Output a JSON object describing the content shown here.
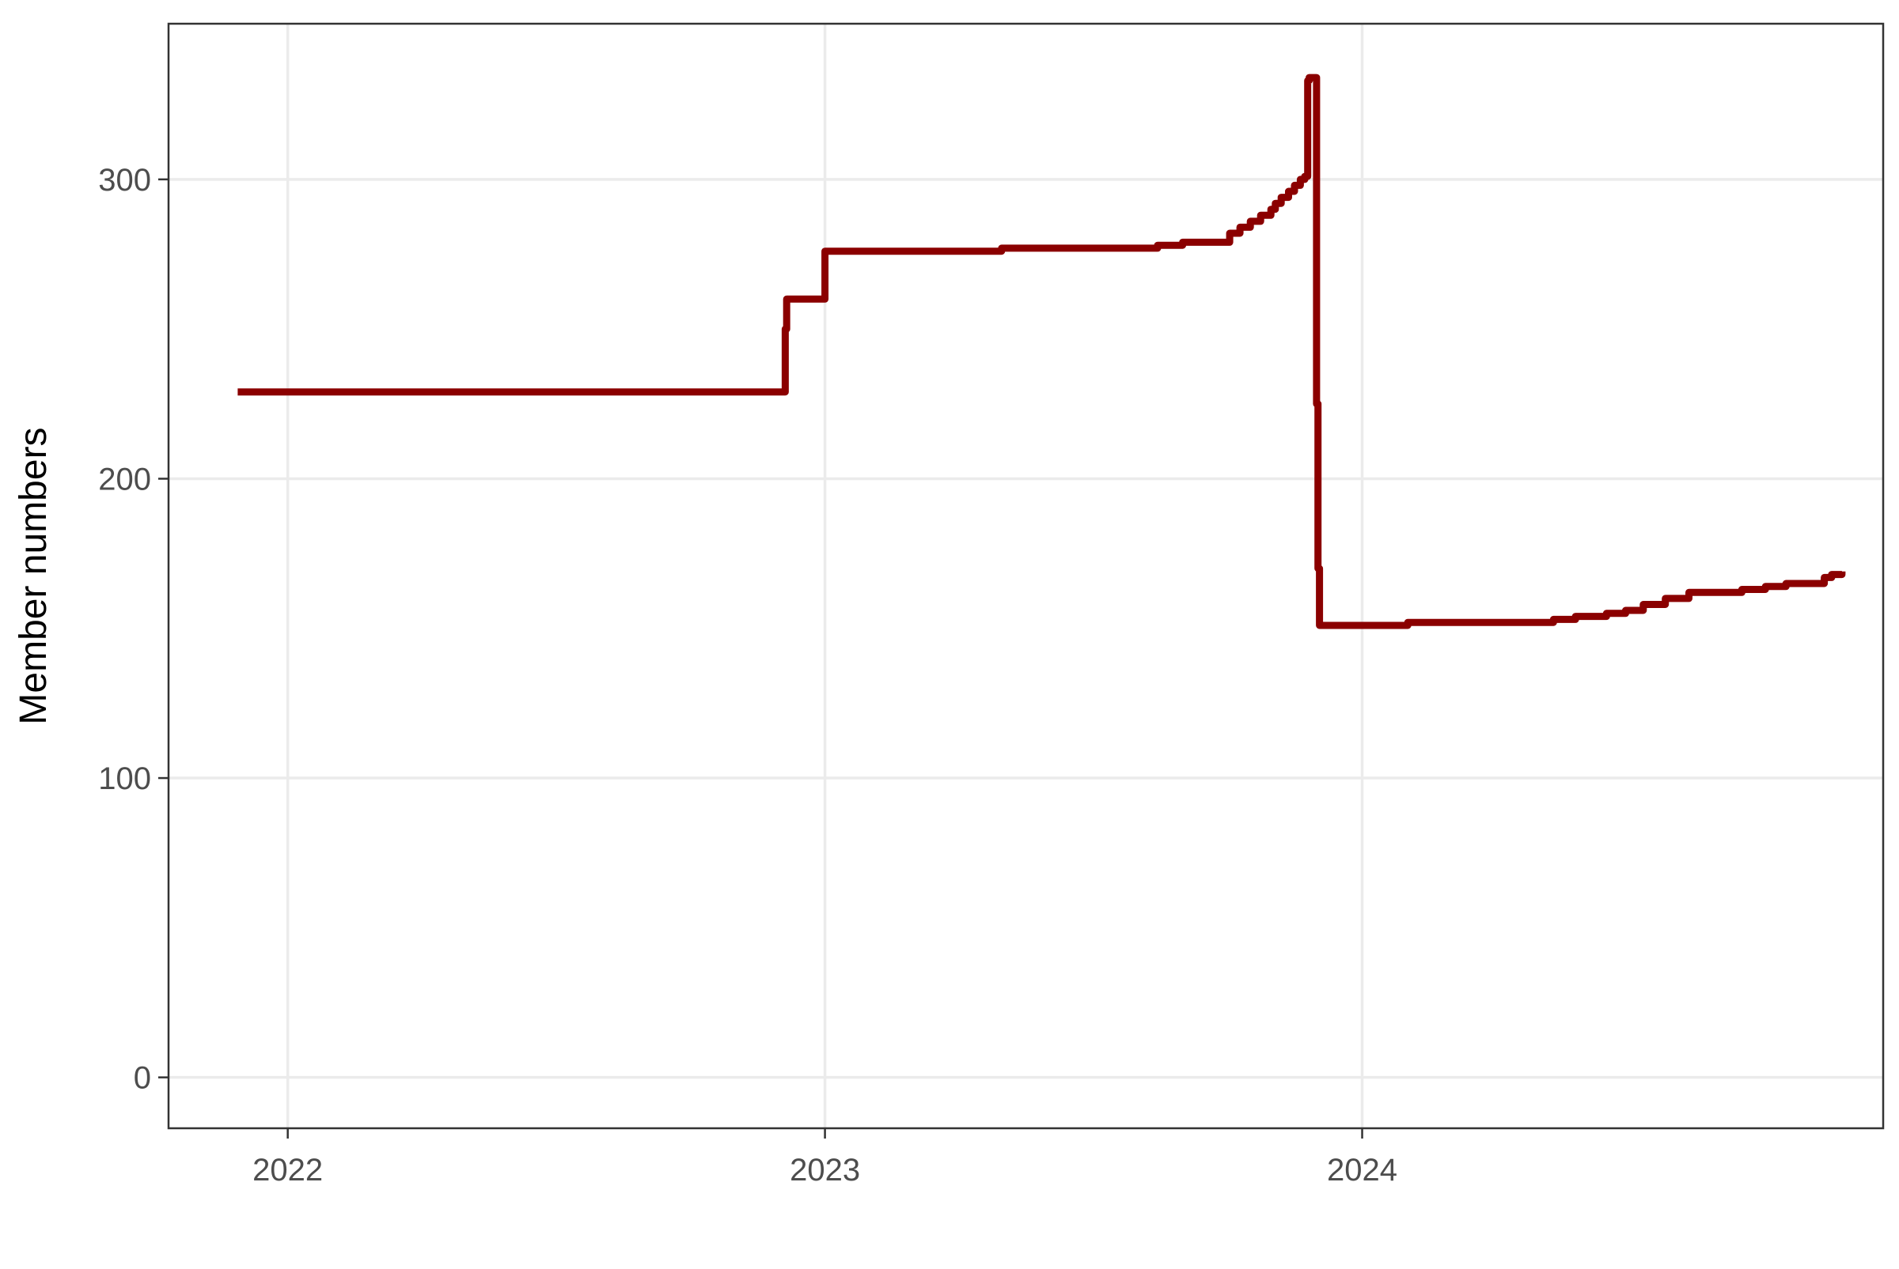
{
  "chart_data": {
    "type": "line",
    "title": "",
    "xlabel": "",
    "ylabel": "Member numbers",
    "x_axis": {
      "ticks": [
        "2022-01-01",
        "2023-01-01",
        "2024-01-01"
      ],
      "tick_labels": [
        "2022",
        "2023",
        "2024"
      ],
      "range": [
        "2021-10-12",
        "2024-12-20"
      ]
    },
    "y_axis": {
      "ticks": [
        0,
        100,
        200,
        300
      ],
      "tick_labels": [
        "0",
        "100",
        "200",
        "300"
      ],
      "range": [
        -17,
        352
      ]
    },
    "grid": true,
    "legend": "none",
    "series_color": "#8B0000",
    "gridline_color": "#EBEBEB",
    "frame_color": "#333333",
    "series": [
      {
        "step": true,
        "x": [
          "2021-11-28",
          "2022-12-01",
          "2022-12-05",
          "2022-12-06",
          "2022-12-15",
          "2022-12-31",
          "2023-01-01",
          "2023-04-15",
          "2023-05-01",
          "2023-05-15",
          "2023-06-01",
          "2023-08-01",
          "2023-08-15",
          "2023-09-01",
          "2023-09-15",
          "2023-09-26",
          "2023-10-03",
          "2023-10-10",
          "2023-10-17",
          "2023-10-24",
          "2023-10-31",
          "2023-11-03",
          "2023-11-07",
          "2023-11-12",
          "2023-11-16",
          "2023-11-20",
          "2023-11-23",
          "2023-11-25",
          "2023-11-26",
          "2023-11-28",
          "2023-12-01",
          "2023-12-02",
          "2023-12-03",
          "2024-02-01",
          "2024-03-01",
          "2024-05-01",
          "2024-05-10",
          "2024-05-25",
          "2024-06-15",
          "2024-06-28",
          "2024-07-10",
          "2024-07-25",
          "2024-08-10",
          "2024-09-01",
          "2024-09-15",
          "2024-10-01",
          "2024-10-15",
          "2024-11-10",
          "2024-11-15",
          "2024-11-22"
        ],
        "y": [
          229,
          229,
          250,
          260,
          260,
          260,
          276,
          276,
          277,
          277,
          277,
          277,
          278,
          279,
          279,
          279,
          282,
          284,
          286,
          288,
          290,
          292,
          294,
          296,
          298,
          300,
          301,
          333,
          334,
          334,
          225,
          170,
          151,
          152,
          152,
          152,
          153,
          154,
          155,
          156,
          158,
          160,
          162,
          162,
          163,
          164,
          165,
          167,
          168,
          169
        ]
      }
    ]
  }
}
